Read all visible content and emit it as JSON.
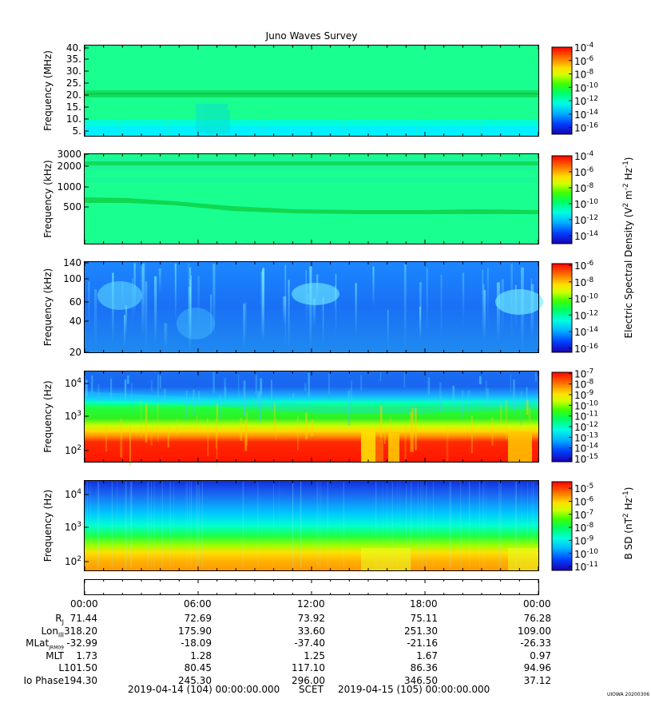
{
  "chart_data": {
    "type": "heatmap",
    "title": "Juno Waves Survey",
    "panels": [
      {
        "ylabel": "Frequency (MHz)",
        "yticks": [
          "40.",
          "35.",
          "30.",
          "25.",
          "20.",
          "15.",
          "10.",
          "5."
        ],
        "ylim": [
          3.5,
          41
        ],
        "colorbar_ticks": [
          "-4",
          "-6",
          "-8",
          "-10",
          "-12",
          "-14",
          "-16"
        ],
        "colorbar_range": [
          -17,
          -4
        ]
      },
      {
        "ylabel": "Frequency (kHz)",
        "yticks": [
          "3000",
          "2000",
          "1000",
          "500"
        ],
        "yscale": "log",
        "colorbar_ticks": [
          "-4",
          "-6",
          "-8",
          "-10",
          "-12",
          "-14"
        ],
        "colorbar_range": [
          -15,
          -4
        ]
      },
      {
        "ylabel": "Frequency (kHz)",
        "yticks": [
          "140",
          "100",
          "60",
          "40",
          "20"
        ],
        "yscale": "log",
        "colorbar_ticks": [
          "-6",
          "-8",
          "-10",
          "-12",
          "-14",
          "-16"
        ],
        "colorbar_range": [
          -16.5,
          -5.8
        ]
      },
      {
        "ylabel": "Frequency (Hz)",
        "yticks": [
          "4",
          "3",
          "2"
        ],
        "yscale": "log",
        "colorbar_ticks": [
          "-7",
          "-8",
          "-9",
          "-10",
          "-11",
          "-12",
          "-13",
          "-14",
          "-15"
        ],
        "colorbar_range": [
          -15.3,
          -6.9
        ]
      },
      {
        "ylabel": "Frequency (Hz)",
        "yticks": [
          "4",
          "3",
          "2"
        ],
        "yscale": "log",
        "colorbar_ticks": [
          "-5",
          "-6",
          "-7",
          "-8",
          "-9",
          "-10",
          "-11"
        ],
        "colorbar_range": [
          -11.3,
          -4.5
        ]
      }
    ],
    "colorbar_labels": {
      "electric": "Electric Spectral Density (V",
      "magnetic": "B SD (nT"
    },
    "x_ticks": [
      "00:00",
      "06:00",
      "12:00",
      "18:00",
      "00:00"
    ],
    "ephemeris": [
      {
        "label": "R",
        "sub": "J",
        "values": [
          "71.44",
          "72.69",
          "73.92",
          "75.11",
          "76.28"
        ]
      },
      {
        "label": "Lon",
        "sub": "III",
        "values": [
          "318.20",
          "175.90",
          "33.60",
          "251.30",
          "109.00"
        ]
      },
      {
        "label": "MLat",
        "sub": "JRM09",
        "values": [
          "-32.99",
          "-18.09",
          "-37.40",
          "-21.16",
          "-26.33"
        ]
      },
      {
        "label": "MLT",
        "sub": "",
        "values": [
          "1.73",
          "1.28",
          "1.25",
          "1.67",
          "0.97"
        ]
      },
      {
        "label": "L",
        "sub": "",
        "values": [
          "101.50",
          "80.45",
          "117.10",
          "86.36",
          "94.96"
        ]
      },
      {
        "label": "Io Phase",
        "sub": "",
        "values": [
          "194.30",
          "245.30",
          "296.00",
          "346.50",
          "37.12"
        ]
      }
    ],
    "time_range_start": "2019-04-14 (104) 00:00:00.000",
    "time_range_label": "SCET",
    "time_range_end": "2019-04-15 (105) 00:00:00.000",
    "stamp": "UIOWA 20200306"
  }
}
